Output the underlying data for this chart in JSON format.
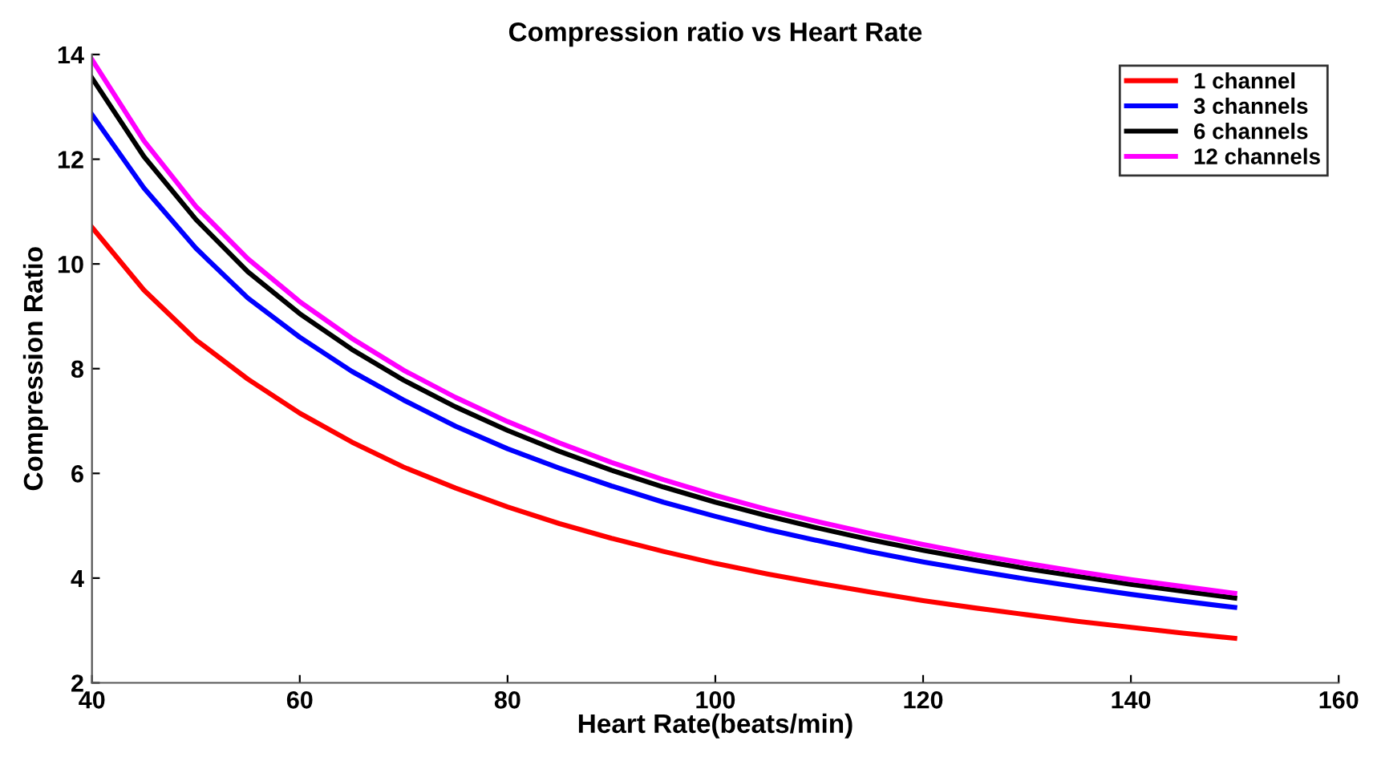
{
  "chart_data": {
    "type": "line",
    "title": "Compression ratio vs Heart Rate",
    "xlabel": "Heart Rate(beats/min)",
    "ylabel": "Compression Ratio",
    "x": [
      40,
      45,
      50,
      55,
      60,
      65,
      70,
      75,
      80,
      85,
      90,
      95,
      100,
      105,
      110,
      115,
      120,
      125,
      130,
      135,
      140,
      145,
      150
    ],
    "series": [
      {
        "name": "1 channel",
        "color": "#ff0000",
        "values": [
          10.7,
          9.5,
          8.55,
          7.8,
          7.15,
          6.6,
          6.12,
          5.72,
          5.36,
          5.04,
          4.76,
          4.51,
          4.28,
          4.08,
          3.9,
          3.73,
          3.57,
          3.43,
          3.3,
          3.17,
          3.06,
          2.95,
          2.85
        ]
      },
      {
        "name": "3 channels",
        "color": "#0000ff",
        "values": [
          12.85,
          11.45,
          10.3,
          9.35,
          8.6,
          7.95,
          7.4,
          6.9,
          6.47,
          6.1,
          5.76,
          5.45,
          5.18,
          4.93,
          4.71,
          4.5,
          4.31,
          4.14,
          3.98,
          3.83,
          3.69,
          3.56,
          3.44
        ]
      },
      {
        "name": "6 channels",
        "color": "#000000",
        "values": [
          13.55,
          12.05,
          10.85,
          9.85,
          9.05,
          8.37,
          7.78,
          7.27,
          6.82,
          6.42,
          6.06,
          5.74,
          5.45,
          5.19,
          4.95,
          4.73,
          4.53,
          4.35,
          4.18,
          4.03,
          3.88,
          3.75,
          3.62
        ]
      },
      {
        "name": "12 channels",
        "color": "#ff00ff",
        "values": [
          13.9,
          12.35,
          11.1,
          10.1,
          9.28,
          8.58,
          7.97,
          7.45,
          6.99,
          6.58,
          6.21,
          5.88,
          5.58,
          5.31,
          5.07,
          4.85,
          4.64,
          4.45,
          4.28,
          4.12,
          3.97,
          3.84,
          3.71
        ]
      }
    ],
    "xlim": [
      40,
      160
    ],
    "xticks": [
      40,
      60,
      80,
      100,
      120,
      140,
      160
    ],
    "ylim": [
      2,
      14
    ],
    "yticks": [
      2,
      4,
      6,
      8,
      10,
      12,
      14
    ],
    "grid": false,
    "legend": "top right",
    "marker": "none",
    "line_style": "solid"
  }
}
